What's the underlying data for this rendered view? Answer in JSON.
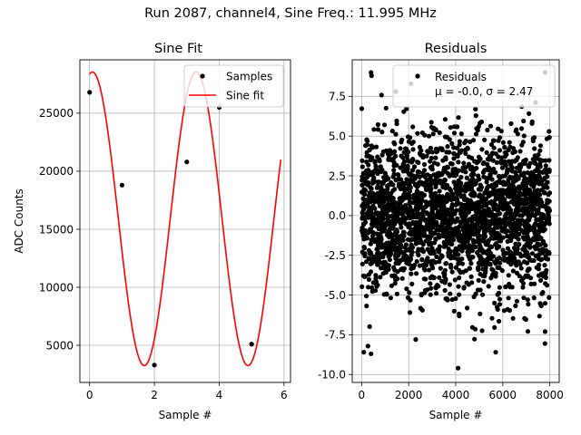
{
  "figure": {
    "suptitle": "Run 2087, channel4, Sine Freq.: 11.995 MHz"
  },
  "chart_data": [
    {
      "type": "line",
      "title": "Sine Fit",
      "xlabel": "Sample #",
      "ylabel": "ADC Counts",
      "xlim": [
        -0.3,
        6.2
      ],
      "ylim": [
        1800,
        29600
      ],
      "xticks": [
        0,
        2,
        4,
        6
      ],
      "yticks": [
        5000,
        10000,
        15000,
        20000,
        25000
      ],
      "grid": true,
      "legend_position": "top-right",
      "series": [
        {
          "name": "Samples",
          "kind": "scatter",
          "color": "#000000",
          "x": [
            0,
            1,
            2,
            3,
            4,
            5
          ],
          "y": [
            26800,
            18800,
            3300,
            20800,
            25500,
            5100
          ]
        },
        {
          "name": "Sine fit",
          "kind": "line",
          "color": "#ff0000",
          "x_range": [
            0,
            5.9
          ],
          "model": {
            "offset": 15900,
            "amplitude": 12650,
            "freq_cycles_per_sample": 0.3124,
            "phase_rad": 1.4
          }
        }
      ]
    },
    {
      "type": "scatter",
      "title": "Residuals",
      "xlabel": "Sample #",
      "xlim": [
        -400,
        8400
      ],
      "ylim": [
        -10.5,
        9.8
      ],
      "xticks": [
        0,
        2000,
        4000,
        6000,
        8000
      ],
      "yticks": [
        -10.0,
        -7.5,
        -5.0,
        -2.5,
        0.0,
        2.5,
        5.0,
        7.5
      ],
      "grid": true,
      "legend_position": "top-right",
      "series": [
        {
          "name": "Residuals",
          "color": "#000000",
          "n_points": 8000,
          "mean": -0.0,
          "sigma": 2.47,
          "outliers": [
            [
              400,
              9.0
            ],
            [
              420,
              8.8
            ],
            [
              2100,
              8.3
            ],
            [
              2400,
              8.8
            ],
            [
              7800,
              9.0
            ],
            [
              4100,
              -9.6
            ],
            [
              400,
              -8.7
            ],
            [
              5700,
              -8.6
            ],
            [
              2300,
              -7.8
            ],
            [
              7800,
              -7.3
            ]
          ]
        }
      ],
      "legend_label": "Residuals",
      "legend_stats": "μ = -0.0, σ = 2.47"
    }
  ]
}
